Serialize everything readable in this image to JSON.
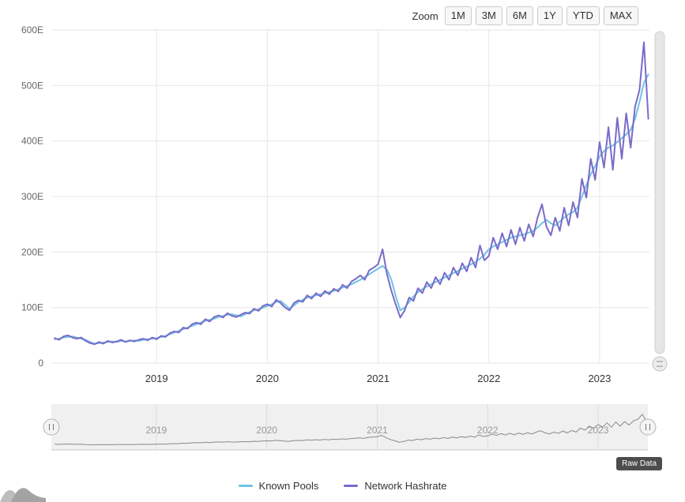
{
  "zoom": {
    "label": "Zoom",
    "buttons": [
      "1M",
      "3M",
      "6M",
      "1Y",
      "YTD",
      "MAX"
    ]
  },
  "raw_data": {
    "label": "Raw Data"
  },
  "legend": [
    {
      "label": "Known Pools",
      "color": "#6FC3E6"
    },
    {
      "label": "Network Hashrate",
      "color": "#7A6BC9"
    }
  ],
  "colors": {
    "grid": "#e6e6e6",
    "axis_label": "#666666",
    "x_label": "#333333",
    "nav_label": "#999999",
    "nav_line": "#8a8a8a",
    "nav_bg": "#f0f0f0",
    "nav_grid": "#dcdcdc",
    "scrollbar": "#e6e6e6",
    "badge_bg": "#4d4d4d"
  },
  "chart_data": {
    "type": "line",
    "title": "",
    "xlabel": "",
    "ylabel": "",
    "unit": "EH/s",
    "xlim": [
      2018.05,
      2023.45
    ],
    "ylim": [
      0,
      600
    ],
    "grid": true,
    "legend_position": "bottom",
    "yticks": [
      0,
      100,
      200,
      300,
      400,
      500,
      600
    ],
    "ytick_labels": [
      "0",
      "100E",
      "200E",
      "300E",
      "400E",
      "500E",
      "600E"
    ],
    "xticks": [
      2019,
      2020,
      2021,
      2022,
      2023
    ],
    "xtick_labels": [
      "2019",
      "2020",
      "2021",
      "2022",
      "2023"
    ],
    "x": [
      2018.08,
      2018.12,
      2018.16,
      2018.2,
      2018.24,
      2018.28,
      2018.32,
      2018.36,
      2018.4,
      2018.44,
      2018.48,
      2018.52,
      2018.56,
      2018.6,
      2018.64,
      2018.68,
      2018.72,
      2018.76,
      2018.8,
      2018.84,
      2018.88,
      2018.92,
      2018.96,
      2019.0,
      2019.04,
      2019.08,
      2019.12,
      2019.16,
      2019.2,
      2019.24,
      2019.28,
      2019.32,
      2019.36,
      2019.4,
      2019.44,
      2019.48,
      2019.52,
      2019.56,
      2019.6,
      2019.64,
      2019.68,
      2019.72,
      2019.76,
      2019.8,
      2019.84,
      2019.88,
      2019.92,
      2019.96,
      2020.0,
      2020.04,
      2020.08,
      2020.12,
      2020.16,
      2020.2,
      2020.24,
      2020.28,
      2020.32,
      2020.36,
      2020.4,
      2020.44,
      2020.48,
      2020.52,
      2020.56,
      2020.6,
      2020.64,
      2020.68,
      2020.72,
      2020.76,
      2020.8,
      2020.84,
      2020.88,
      2020.92,
      2020.96,
      2021.0,
      2021.04,
      2021.08,
      2021.12,
      2021.16,
      2021.2,
      2021.24,
      2021.28,
      2021.32,
      2021.36,
      2021.4,
      2021.44,
      2021.48,
      2021.52,
      2021.56,
      2021.6,
      2021.64,
      2021.68,
      2021.72,
      2021.76,
      2021.8,
      2021.84,
      2021.88,
      2021.92,
      2021.96,
      2022.0,
      2022.04,
      2022.08,
      2022.12,
      2022.16,
      2022.2,
      2022.24,
      2022.28,
      2022.32,
      2022.36,
      2022.4,
      2022.44,
      2022.48,
      2022.52,
      2022.56,
      2022.6,
      2022.64,
      2022.68,
      2022.72,
      2022.76,
      2022.8,
      2022.84,
      2022.88,
      2022.92,
      2022.96,
      2023.0,
      2023.04,
      2023.08,
      2023.12,
      2023.16,
      2023.2,
      2023.24,
      2023.28,
      2023.32,
      2023.36,
      2023.4,
      2023.44
    ],
    "series": [
      {
        "name": "Known Pools",
        "color": "#6FC3E6",
        "values": [
          43,
          44,
          46,
          47,
          48,
          46,
          44,
          42,
          38,
          35,
          36,
          37,
          38,
          39,
          38,
          40,
          39,
          40,
          41,
          40,
          42,
          43,
          44,
          45,
          47,
          49,
          52,
          55,
          58,
          61,
          64,
          67,
          70,
          73,
          76,
          78,
          80,
          83,
          85,
          87,
          88,
          86,
          84,
          88,
          92,
          95,
          97,
          100,
          103,
          106,
          110,
          112,
          105,
          98,
          104,
          110,
          114,
          118,
          120,
          122,
          124,
          126,
          128,
          130,
          133,
          136,
          139,
          142,
          146,
          150,
          155,
          160,
          165,
          170,
          175,
          168,
          150,
          120,
          95,
          100,
          110,
          120,
          128,
          133,
          138,
          142,
          146,
          150,
          154,
          158,
          162,
          166,
          170,
          174,
          178,
          182,
          188,
          195,
          205,
          210,
          214,
          218,
          222,
          226,
          228,
          230,
          232,
          235,
          238,
          244,
          252,
          258,
          252,
          248,
          255,
          262,
          268,
          272,
          280,
          300,
          320,
          340,
          355,
          372,
          382,
          388,
          392,
          398,
          405,
          412,
          420,
          440,
          470,
          505,
          520
        ]
      },
      {
        "name": "Network Hashrate",
        "color": "#7A6BC9",
        "values": [
          45,
          42,
          48,
          50,
          46,
          44,
          46,
          40,
          36,
          34,
          38,
          35,
          40,
          37,
          39,
          42,
          38,
          41,
          39,
          42,
          44,
          41,
          46,
          43,
          49,
          47,
          54,
          57,
          55,
          64,
          62,
          70,
          73,
          70,
          79,
          75,
          83,
          86,
          82,
          90,
          85,
          83,
          87,
          91,
          89,
          98,
          94,
          103,
          106,
          102,
          114,
          108,
          100,
          95,
          108,
          113,
          110,
          122,
          116,
          126,
          120,
          130,
          124,
          134,
          129,
          141,
          135,
          147,
          152,
          158,
          150,
          167,
          172,
          178,
          205,
          160,
          130,
          105,
          82,
          95,
          118,
          112,
          135,
          126,
          146,
          135,
          155,
          142,
          163,
          150,
          172,
          158,
          180,
          165,
          190,
          172,
          212,
          185,
          193,
          226,
          205,
          234,
          210,
          240,
          214,
          244,
          220,
          250,
          228,
          262,
          286,
          246,
          230,
          262,
          238,
          280,
          248,
          290,
          262,
          332,
          298,
          368,
          330,
          398,
          352,
          425,
          348,
          442,
          368,
          450,
          388,
          462,
          492,
          578,
          440
        ]
      }
    ],
    "navigator": {
      "xticks": [
        2019,
        2020,
        2021,
        2022,
        2023
      ],
      "xtick_labels": [
        "2019",
        "2020",
        "2021",
        "2022",
        "2023"
      ],
      "series": "Network Hashrate"
    }
  }
}
